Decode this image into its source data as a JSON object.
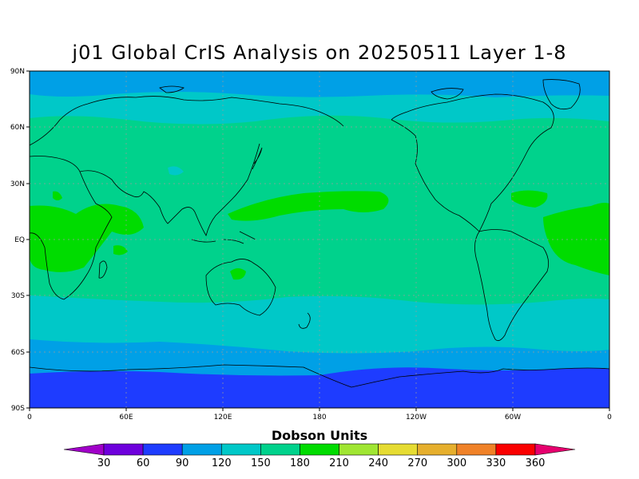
{
  "title": "j01 Global CrIS Analysis on 20250511 Layer 1-8",
  "lat_ticks": [
    "90N",
    "60N",
    "30N",
    "EQ",
    "30S",
    "60S",
    "90S"
  ],
  "lon_ticks": [
    "0",
    "60E",
    "120E",
    "180",
    "120W",
    "60W",
    "0"
  ],
  "colorbar": {
    "title": "Dobson Units",
    "labels": [
      "30",
      "60",
      "90",
      "120",
      "150",
      "180",
      "210",
      "240",
      "270",
      "300",
      "330",
      "360"
    ],
    "colors": [
      "#a000c8",
      "#6e00dc",
      "#1e3cff",
      "#00a0e6",
      "#00c8c8",
      "#00d28c",
      "#00dc00",
      "#a0e632",
      "#e6dc32",
      "#e6af2d",
      "#f08228",
      "#fa0000",
      "#e6006e"
    ]
  },
  "map": {
    "type": "filled-contour",
    "variable": "column ozone",
    "units": "Dobson Units",
    "projection": "cylindrical equidistant",
    "lon_range": [
      0,
      360
    ],
    "lat_range": [
      -90,
      90
    ],
    "grid": true,
    "zonal_bands": [
      {
        "lat_range": [
          90,
          80
        ],
        "range_du": "90-120"
      },
      {
        "lat_range": [
          80,
          65
        ],
        "range_du": "120-150"
      },
      {
        "lat_range": [
          65,
          48
        ],
        "range_du": "150-180"
      },
      {
        "lat_range": [
          48,
          -28
        ],
        "range_du": "180-210 with 210-240 patches"
      },
      {
        "lat_range": [
          -28,
          -45
        ],
        "range_du": "150-180"
      },
      {
        "lat_range": [
          -45,
          -60
        ],
        "range_du": "120-150"
      },
      {
        "lat_range": [
          -60,
          -72
        ],
        "range_du": "90-120"
      },
      {
        "lat_range": [
          -72,
          -90
        ],
        "range_du": "60-90"
      }
    ]
  }
}
